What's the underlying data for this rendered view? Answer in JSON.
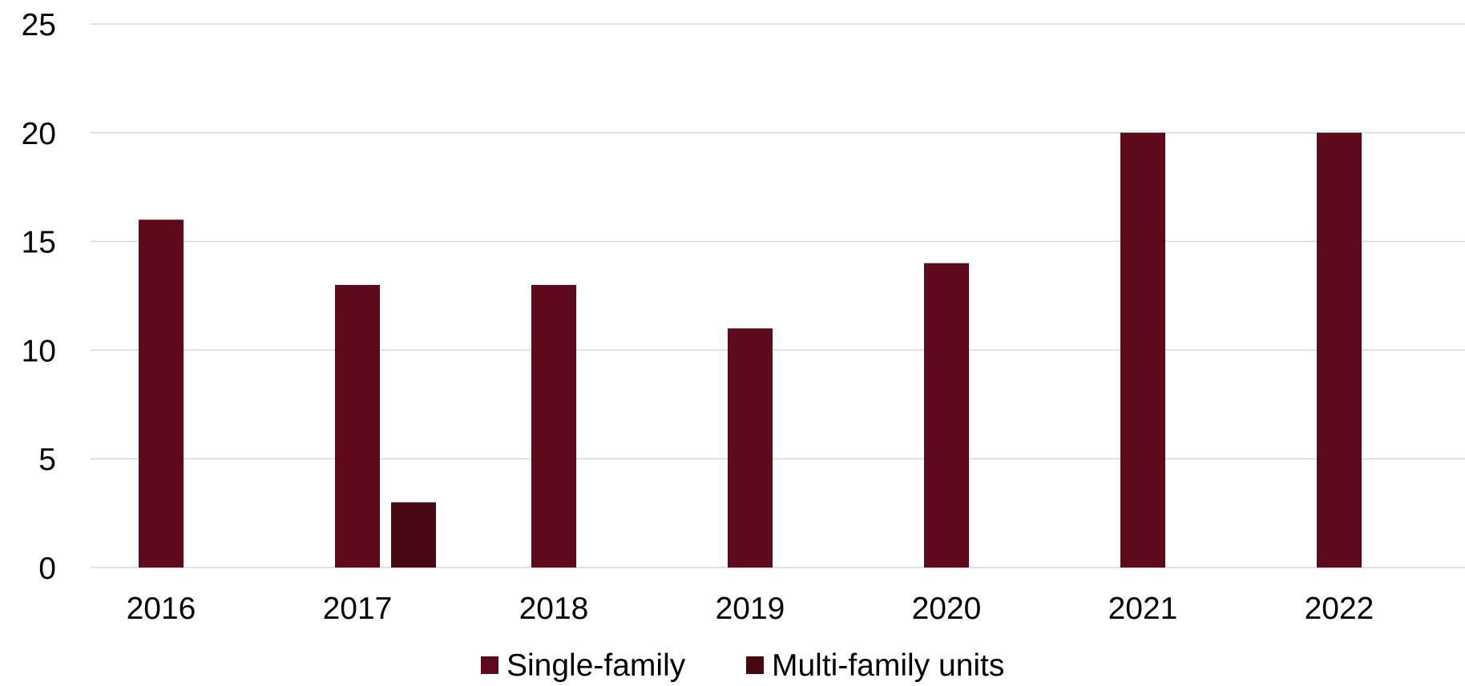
{
  "chart_data": {
    "type": "bar",
    "categories": [
      "2016",
      "2017",
      "2018",
      "2019",
      "2020",
      "2021",
      "2022"
    ],
    "series": [
      {
        "name": "Single-family",
        "color": "#5E0A1A",
        "values": [
          16,
          13,
          13,
          11,
          14,
          20,
          20
        ]
      },
      {
        "name": "Multi-family units",
        "color": "#470812",
        "values": [
          0,
          3,
          0,
          0,
          0,
          0,
          0
        ]
      }
    ],
    "ylim": [
      0,
      25
    ],
    "yticks": [
      0,
      5,
      10,
      15,
      20,
      25
    ],
    "grid": true,
    "gridColor": "#D9D9D9",
    "legend": "bottom"
  }
}
